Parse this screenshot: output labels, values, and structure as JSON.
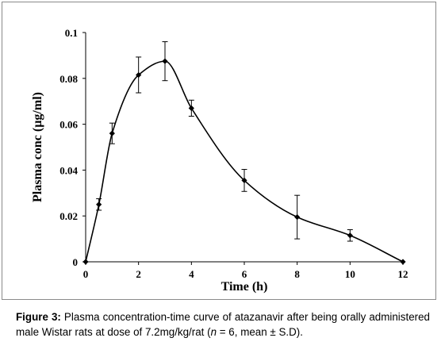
{
  "chart_data": {
    "type": "line",
    "xlabel": "Time (h)",
    "ylabel": "Plasma conc (µg/ml)",
    "xlim": [
      0,
      12
    ],
    "ylim": [
      0,
      0.1
    ],
    "xticks": [
      "0",
      "2",
      "4",
      "6",
      "8",
      "10",
      "12"
    ],
    "yticks": [
      "0",
      "0.02",
      "0.04",
      "0.06",
      "0.08",
      "0.1"
    ],
    "grid": false,
    "legend": "none",
    "series": [
      {
        "x": [
          0,
          0.5,
          1,
          2,
          3,
          4,
          6,
          8,
          10,
          12
        ],
        "y": [
          0,
          0.025,
          0.056,
          0.0815,
          0.0875,
          0.067,
          0.0355,
          0.0195,
          0.0115,
          0
        ],
        "error": [
          0,
          0.0025,
          0.0045,
          0.0078,
          0.0085,
          0.0035,
          0.0048,
          0.0095,
          0.0025,
          0
        ]
      }
    ]
  },
  "caption": {
    "label": "Figure 3:",
    "text": " Plasma concentration-time curve of atazanavir after being orally administered male Wistar rats at dose of 7.2mg/kg/rat (",
    "n_symbol": "n",
    "text_after": " = 6, mean ± S.D)."
  },
  "colors": {
    "line": "#000000",
    "marker": "#000000"
  }
}
